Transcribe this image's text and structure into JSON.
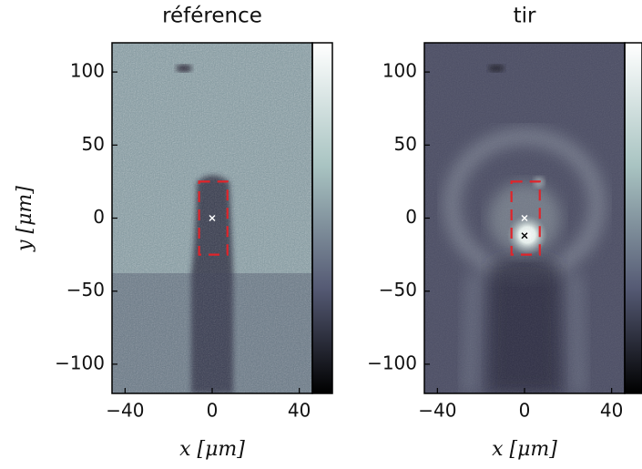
{
  "chart_data": [
    {
      "type": "image",
      "title": "référence",
      "xlabel": "x [μm]",
      "ylabel": "y [μm]",
      "xlim": [
        -46,
        46
      ],
      "ylim": [
        -120,
        120
      ],
      "xticks": [
        {
          "value": -40,
          "label": "−40"
        },
        0,
        40
      ],
      "yticks": [
        {
          "value": -100,
          "label": "−100"
        },
        {
          "value": -50,
          "label": "−50"
        },
        0,
        50,
        100
      ],
      "box": {
        "x": [
          -6,
          7
        ],
        "y": [
          -25,
          25
        ],
        "color": "#e0242a"
      },
      "series": [
        {
          "x": [
            0
          ],
          "values": [
            0
          ],
          "color": "#ffffff"
        }
      ]
    },
    {
      "type": "image",
      "title": "tir",
      "xlabel": "x [μm]",
      "xlim": [
        -46,
        46
      ],
      "ylim": [
        -120,
        120
      ],
      "xticks": [
        {
          "value": -40,
          "label": "−40"
        },
        0,
        40
      ],
      "yticks": [
        {
          "value": -100,
          "label": "−100"
        },
        {
          "value": -50,
          "label": "−50"
        },
        0,
        50,
        100
      ],
      "box": {
        "x": [
          -6,
          7
        ],
        "y": [
          -25,
          25
        ],
        "color": "#e0242a"
      },
      "series": [
        {
          "x": [
            0
          ],
          "values": [
            0
          ],
          "color": "#ffffff"
        },
        {
          "x": [
            0
          ],
          "values": [
            -12
          ],
          "color": "#000000"
        }
      ]
    }
  ]
}
